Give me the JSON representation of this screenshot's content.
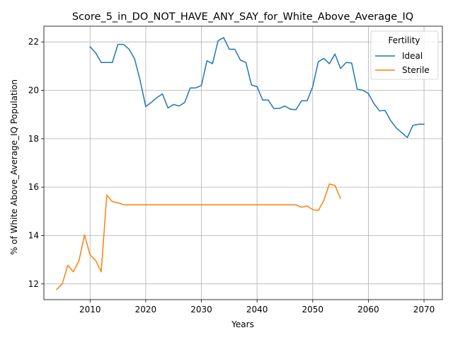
{
  "chart_data": {
    "type": "line",
    "title": "Score_5_in_DO_NOT_HAVE_ANY_SAY_for_White_Above_Average_IQ",
    "xlabel": "Years",
    "ylabel": "% of White Above_Average_IQ Population",
    "xlim": [
      2001.7,
      2073.3
    ],
    "ylim": [
      11.35,
      22.65
    ],
    "xticks": [
      2010,
      2020,
      2030,
      2040,
      2050,
      2060,
      2070
    ],
    "yticks": [
      12,
      14,
      16,
      18,
      20,
      22
    ],
    "grid": true,
    "legend": {
      "title": "Fertility",
      "placement": "top-right"
    },
    "series": [
      {
        "name": "Ideal",
        "color": "#1f77b4",
        "x": [
          2010,
          2011,
          2012,
          2013,
          2014,
          2015,
          2016,
          2017,
          2018,
          2019,
          2020,
          2021,
          2022,
          2023,
          2024,
          2025,
          2026,
          2027,
          2028,
          2029,
          2030,
          2031,
          2032,
          2033,
          2034,
          2035,
          2036,
          2037,
          2038,
          2039,
          2040,
          2041,
          2042,
          2043,
          2044,
          2045,
          2046,
          2047,
          2048,
          2049,
          2050,
          2051,
          2052,
          2053,
          2054,
          2055,
          2056,
          2057,
          2058,
          2059,
          2060,
          2061,
          2062,
          2063,
          2064,
          2065,
          2066,
          2067,
          2068,
          2069,
          2070
        ],
        "values": [
          21.8,
          21.55,
          21.15,
          21.15,
          21.15,
          21.9,
          21.9,
          21.7,
          21.3,
          20.4,
          19.33,
          19.5,
          19.7,
          19.85,
          19.27,
          19.42,
          19.35,
          19.5,
          20.1,
          20.1,
          20.2,
          21.22,
          21.1,
          22.05,
          22.18,
          21.7,
          21.7,
          21.25,
          21.15,
          20.22,
          20.15,
          19.6,
          19.6,
          19.25,
          19.25,
          19.35,
          19.22,
          19.2,
          19.57,
          19.57,
          20.15,
          21.18,
          21.32,
          21.1,
          21.5,
          20.9,
          21.15,
          21.13,
          20.05,
          20.0,
          19.87,
          19.45,
          19.15,
          19.17,
          18.75,
          18.45,
          18.25,
          18.05,
          18.55,
          18.6,
          18.6
        ]
      },
      {
        "name": "Sterile",
        "color": "#ff7f0e",
        "x": [
          2004,
          2005,
          2006,
          2007,
          2008,
          2009,
          2010,
          2011,
          2012,
          2013,
          2014,
          2015,
          2016,
          2017,
          2018,
          2019,
          2020,
          2021,
          2022,
          2023,
          2024,
          2025,
          2026,
          2027,
          2028,
          2029,
          2030,
          2031,
          2032,
          2033,
          2034,
          2035,
          2036,
          2037,
          2038,
          2039,
          2040,
          2041,
          2042,
          2043,
          2044,
          2045,
          2046,
          2047,
          2048,
          2049,
          2050,
          2051,
          2052,
          2053,
          2054,
          2055
        ],
        "values": [
          11.77,
          12.0,
          12.77,
          12.5,
          12.95,
          14.03,
          13.2,
          12.97,
          12.5,
          15.67,
          15.4,
          15.35,
          15.27,
          15.27,
          15.27,
          15.27,
          15.27,
          15.27,
          15.27,
          15.27,
          15.27,
          15.27,
          15.27,
          15.27,
          15.27,
          15.27,
          15.27,
          15.27,
          15.27,
          15.27,
          15.27,
          15.27,
          15.27,
          15.27,
          15.27,
          15.27,
          15.27,
          15.27,
          15.27,
          15.27,
          15.27,
          15.27,
          15.27,
          15.27,
          15.17,
          15.22,
          15.07,
          15.03,
          15.45,
          16.13,
          16.07,
          15.53
        ]
      }
    ]
  }
}
